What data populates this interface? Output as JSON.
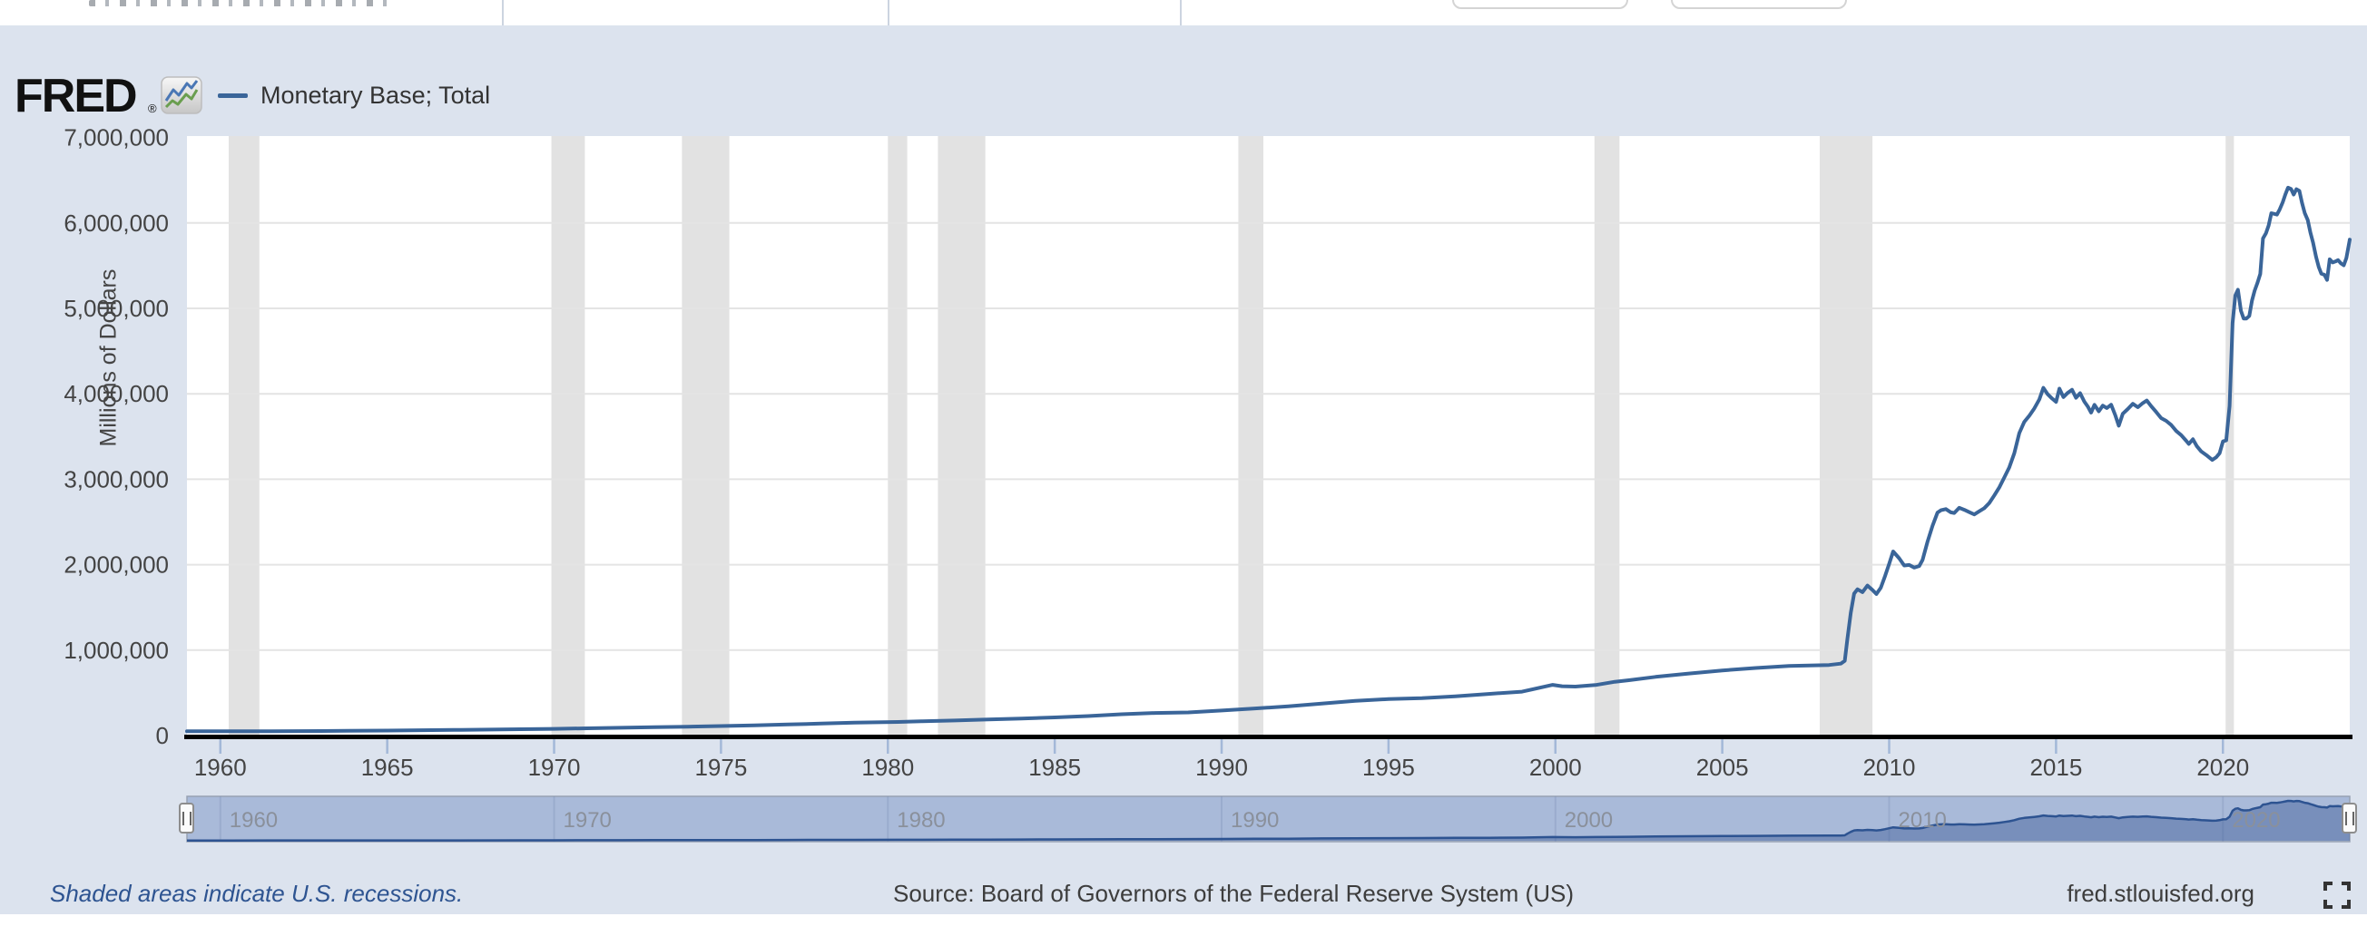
{
  "branding": {
    "logo_text": "FRED",
    "registered_mark": "®"
  },
  "legend": {
    "series_label": "Monetary Base; Total",
    "series_color": "#3a6599"
  },
  "footer": {
    "note": "Shaded areas indicate U.S. recessions.",
    "source": "Source: Board of Governors of the Federal Reserve System (US)",
    "site": "fred.stlouisfed.org"
  },
  "colors": {
    "panel_bg": "#dce3ee",
    "plot_bg": "#ffffff",
    "gridline": "#e4e4e4",
    "recession_band": "#e2e2e2",
    "series_line": "#3a6599",
    "axis_line": "#000000",
    "tick": "#a3b8d8",
    "tick_label": "#444444",
    "slider_bar": "#a9bad9",
    "slider_border": "#98a2b3",
    "slider_area": "rgba(60,92,150,0.45)",
    "slider_line": "#2d5391",
    "slider_label": "#8a909b",
    "note_blue": "#2e5491"
  },
  "chart_data": {
    "type": "line",
    "series_name": "Monetary Base; Total",
    "ylabel": "Millions of Dollars",
    "xlim": [
      1959.0,
      2023.8
    ],
    "ylim": [
      0,
      7000000
    ],
    "grid": "horizontal",
    "legend_position": "top-left",
    "x_ticks": [
      1960,
      1965,
      1970,
      1975,
      1980,
      1985,
      1990,
      1995,
      2000,
      2005,
      2010,
      2015,
      2020
    ],
    "y_ticks": [
      0,
      1000000,
      2000000,
      3000000,
      4000000,
      5000000,
      6000000,
      7000000
    ],
    "y_tick_labels": [
      "0",
      "1,000,000",
      "2,000,000",
      "3,000,000",
      "4,000,000",
      "5,000,000",
      "6,000,000",
      "7,000,000"
    ],
    "recessions": [
      [
        1960.25,
        1961.17
      ],
      [
        1969.92,
        1970.92
      ],
      [
        1973.83,
        1975.25
      ],
      [
        1980.0,
        1980.58
      ],
      [
        1981.5,
        1982.92
      ],
      [
        1990.5,
        1991.25
      ],
      [
        2001.17,
        2001.92
      ],
      [
        2007.92,
        2009.5
      ],
      [
        2020.08,
        2020.33
      ]
    ],
    "points": [
      [
        1959.0,
        50500
      ],
      [
        1960.3,
        50200
      ],
      [
        1961.5,
        51200
      ],
      [
        1963,
        53500
      ],
      [
        1965,
        58500
      ],
      [
        1967,
        65500
      ],
      [
        1969,
        74500
      ],
      [
        1970,
        79000
      ],
      [
        1971,
        84500
      ],
      [
        1972,
        91000
      ],
      [
        1973,
        97500
      ],
      [
        1974,
        104500
      ],
      [
        1975,
        111500
      ],
      [
        1976,
        119000
      ],
      [
        1977,
        129000
      ],
      [
        1978,
        140500
      ],
      [
        1979,
        152000
      ],
      [
        1980.3,
        159000
      ],
      [
        1981,
        167000
      ],
      [
        1982,
        176000
      ],
      [
        1983,
        188000
      ],
      [
        1984,
        200000
      ],
      [
        1985,
        212000
      ],
      [
        1986,
        228000
      ],
      [
        1987,
        249000
      ],
      [
        1988,
        264000
      ],
      [
        1989,
        271000
      ],
      [
        1990,
        293000
      ],
      [
        1991,
        317000
      ],
      [
        1992,
        342000
      ],
      [
        1993,
        374000
      ],
      [
        1994,
        407000
      ],
      [
        1995,
        427000
      ],
      [
        1996,
        438000
      ],
      [
        1997,
        460000
      ],
      [
        1998,
        487000
      ],
      [
        1999,
        514000
      ],
      [
        1999.92,
        593000
      ],
      [
        2000.2,
        577000
      ],
      [
        2000.6,
        573000
      ],
      [
        2001.2,
        591000
      ],
      [
        2001.78,
        629000
      ],
      [
        2002.2,
        648000
      ],
      [
        2003,
        687000
      ],
      [
        2004,
        726000
      ],
      [
        2005,
        762000
      ],
      [
        2006,
        791000
      ],
      [
        2007,
        814000
      ],
      [
        2008.2,
        826000
      ],
      [
        2008.55,
        842000
      ],
      [
        2008.67,
        875000
      ],
      [
        2008.75,
        1132000
      ],
      [
        2008.85,
        1436000
      ],
      [
        2008.95,
        1661000
      ],
      [
        2009.05,
        1712000
      ],
      [
        2009.2,
        1678000
      ],
      [
        2009.35,
        1756000
      ],
      [
        2009.5,
        1704000
      ],
      [
        2009.62,
        1657000
      ],
      [
        2009.75,
        1730000
      ],
      [
        2009.88,
        1870000
      ],
      [
        2010.0,
        2010000
      ],
      [
        2010.12,
        2155000
      ],
      [
        2010.3,
        2075000
      ],
      [
        2010.45,
        1990000
      ],
      [
        2010.6,
        1997000
      ],
      [
        2010.75,
        1966000
      ],
      [
        2010.9,
        1984000
      ],
      [
        2011.0,
        2055000
      ],
      [
        2011.15,
        2270000
      ],
      [
        2011.3,
        2455000
      ],
      [
        2011.45,
        2610000
      ],
      [
        2011.55,
        2637000
      ],
      [
        2011.7,
        2651000
      ],
      [
        2011.85,
        2613000
      ],
      [
        2011.95,
        2605000
      ],
      [
        2012.1,
        2666000
      ],
      [
        2012.25,
        2642000
      ],
      [
        2012.4,
        2615000
      ],
      [
        2012.55,
        2588000
      ],
      [
        2012.7,
        2625000
      ],
      [
        2012.85,
        2661000
      ],
      [
        2013.0,
        2722000
      ],
      [
        2013.15,
        2810000
      ],
      [
        2013.3,
        2905000
      ],
      [
        2013.45,
        3021000
      ],
      [
        2013.6,
        3140000
      ],
      [
        2013.75,
        3305000
      ],
      [
        2013.9,
        3540000
      ],
      [
        2014.05,
        3672000
      ],
      [
        2014.2,
        3745000
      ],
      [
        2014.35,
        3830000
      ],
      [
        2014.5,
        3935000
      ],
      [
        2014.62,
        4070000
      ],
      [
        2014.75,
        3995000
      ],
      [
        2014.88,
        3945000
      ],
      [
        2015.0,
        3905000
      ],
      [
        2015.1,
        4060000
      ],
      [
        2015.22,
        3962000
      ],
      [
        2015.35,
        4012000
      ],
      [
        2015.48,
        4048000
      ],
      [
        2015.6,
        3953000
      ],
      [
        2015.72,
        4007000
      ],
      [
        2015.85,
        3908000
      ],
      [
        2015.95,
        3852000
      ],
      [
        2016.05,
        3780000
      ],
      [
        2016.15,
        3872000
      ],
      [
        2016.28,
        3795000
      ],
      [
        2016.4,
        3862000
      ],
      [
        2016.52,
        3833000
      ],
      [
        2016.65,
        3873000
      ],
      [
        2016.78,
        3745000
      ],
      [
        2016.88,
        3626000
      ],
      [
        2017.0,
        3766000
      ],
      [
        2017.15,
        3822000
      ],
      [
        2017.3,
        3883000
      ],
      [
        2017.45,
        3843000
      ],
      [
        2017.6,
        3892000
      ],
      [
        2017.72,
        3921000
      ],
      [
        2017.85,
        3856000
      ],
      [
        2018.0,
        3788000
      ],
      [
        2018.15,
        3715000
      ],
      [
        2018.3,
        3684000
      ],
      [
        2018.45,
        3635000
      ],
      [
        2018.6,
        3565000
      ],
      [
        2018.75,
        3516000
      ],
      [
        2018.9,
        3450000
      ],
      [
        2018.98,
        3413000
      ],
      [
        2019.1,
        3468000
      ],
      [
        2019.22,
        3385000
      ],
      [
        2019.35,
        3325000
      ],
      [
        2019.5,
        3283000
      ],
      [
        2019.68,
        3226000
      ],
      [
        2019.8,
        3258000
      ],
      [
        2019.9,
        3305000
      ],
      [
        2020.0,
        3443000
      ],
      [
        2020.1,
        3455000
      ],
      [
        2020.2,
        3858000
      ],
      [
        2020.29,
        4830000
      ],
      [
        2020.37,
        5151000
      ],
      [
        2020.45,
        5218000
      ],
      [
        2020.54,
        4972000
      ],
      [
        2020.62,
        4881000
      ],
      [
        2020.7,
        4880000
      ],
      [
        2020.79,
        4912000
      ],
      [
        2020.87,
        5092000
      ],
      [
        2020.95,
        5207000
      ],
      [
        2021.04,
        5305000
      ],
      [
        2021.12,
        5403000
      ],
      [
        2021.2,
        5819000
      ],
      [
        2021.29,
        5880000
      ],
      [
        2021.37,
        5969000
      ],
      [
        2021.45,
        6114000
      ],
      [
        2021.54,
        6106000
      ],
      [
        2021.62,
        6098000
      ],
      [
        2021.7,
        6158000
      ],
      [
        2021.79,
        6241000
      ],
      [
        2021.87,
        6332000
      ],
      [
        2021.95,
        6413000
      ],
      [
        2022.04,
        6398000
      ],
      [
        2022.12,
        6332000
      ],
      [
        2022.2,
        6395000
      ],
      [
        2022.29,
        6375000
      ],
      [
        2022.37,
        6235000
      ],
      [
        2022.45,
        6116000
      ],
      [
        2022.54,
        6034000
      ],
      [
        2022.62,
        5890000
      ],
      [
        2022.7,
        5773000
      ],
      [
        2022.79,
        5602000
      ],
      [
        2022.87,
        5485000
      ],
      [
        2022.95,
        5406000
      ],
      [
        2023.04,
        5393000
      ],
      [
        2023.12,
        5333000
      ],
      [
        2023.2,
        5574000
      ],
      [
        2023.29,
        5537000
      ],
      [
        2023.37,
        5549000
      ],
      [
        2023.45,
        5565000
      ],
      [
        2023.54,
        5526000
      ],
      [
        2023.62,
        5504000
      ],
      [
        2023.7,
        5590000
      ],
      [
        2023.8,
        5805000
      ]
    ]
  },
  "slider": {
    "decade_labels": [
      "1960",
      "1970",
      "1980",
      "1990",
      "2000",
      "2010",
      "2020"
    ]
  }
}
